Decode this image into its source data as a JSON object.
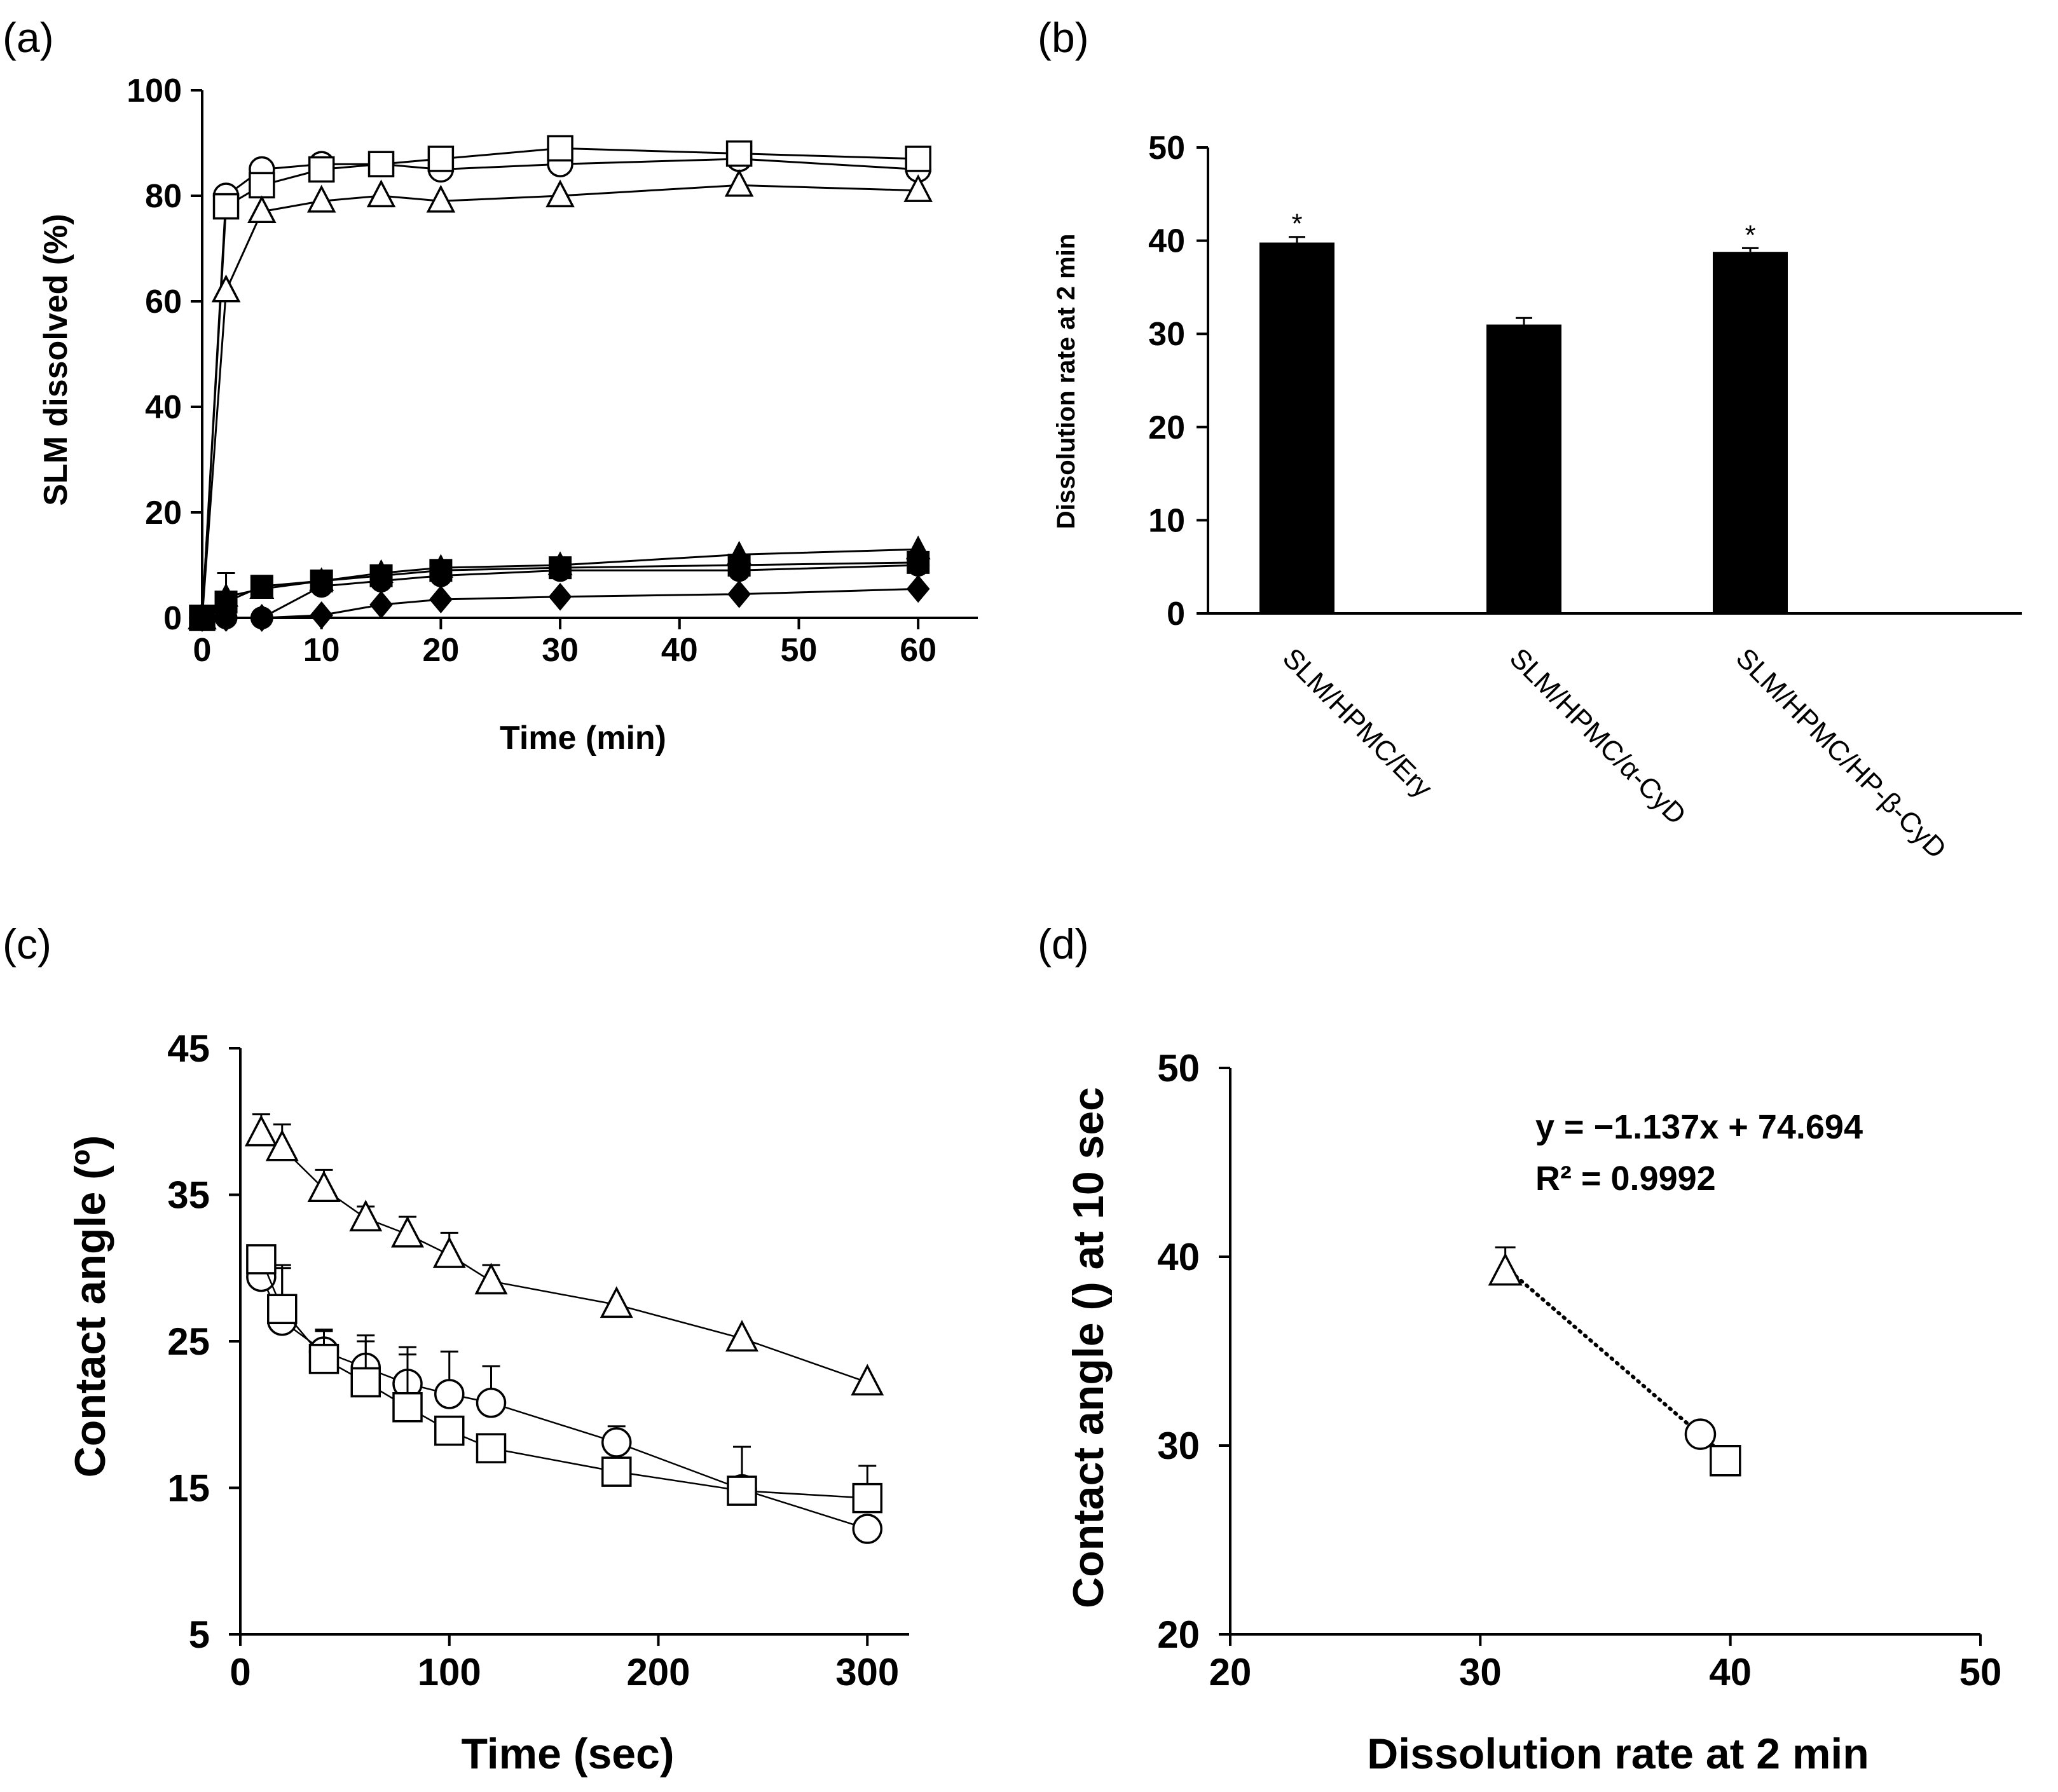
{
  "figure": {
    "panel_labels": [
      "(a)",
      "(b)",
      "(c)",
      "(d)"
    ]
  },
  "chart_data": [
    {
      "panel": "(a)",
      "type": "line",
      "title": "",
      "xlabel": "Time (min)",
      "ylabel": "SLM dissolved (%)",
      "xlim": [
        0,
        65
      ],
      "ylim": [
        0,
        100
      ],
      "xticks": [
        0,
        10,
        20,
        30,
        40,
        50,
        60
      ],
      "yticks": [
        0,
        20,
        40,
        60,
        80,
        100
      ],
      "grid": false,
      "legend": "none",
      "series": [
        {
          "name": "open circle",
          "marker": "circle",
          "filled": false,
          "x": [
            0,
            2,
            5,
            10,
            15,
            20,
            30,
            45,
            60
          ],
          "y": [
            0,
            80,
            85,
            86,
            86,
            85,
            86,
            87,
            85
          ]
        },
        {
          "name": "open square",
          "marker": "square",
          "filled": false,
          "x": [
            0,
            2,
            5,
            10,
            15,
            20,
            30,
            45,
            60
          ],
          "y": [
            0,
            78,
            82,
            85,
            86,
            87,
            89,
            88,
            87
          ]
        },
        {
          "name": "open triangle",
          "marker": "triangle",
          "filled": false,
          "x": [
            0,
            2,
            5,
            10,
            15,
            20,
            30,
            45,
            60
          ],
          "y": [
            0,
            62,
            77,
            79,
            80,
            79,
            80,
            82,
            81
          ]
        },
        {
          "name": "filled circle",
          "marker": "circle",
          "filled": true,
          "x": [
            0,
            2,
            5,
            10,
            15,
            20,
            30,
            45,
            60
          ],
          "y": [
            0,
            0,
            0,
            6,
            7,
            8,
            9,
            9,
            10
          ]
        },
        {
          "name": "filled square",
          "marker": "square",
          "filled": true,
          "x": [
            0,
            2,
            5,
            10,
            15,
            20,
            30,
            45,
            60
          ],
          "y": [
            0,
            3,
            6,
            7,
            8,
            9,
            9.5,
            10,
            10.5
          ]
        },
        {
          "name": "filled triangle",
          "marker": "triangle",
          "filled": true,
          "x": [
            0,
            2,
            5,
            10,
            15,
            20,
            30,
            45,
            60
          ],
          "y": [
            0,
            4,
            5.5,
            7,
            8.5,
            9.5,
            10,
            12,
            13
          ]
        },
        {
          "name": "filled diamond",
          "marker": "diamond",
          "filled": true,
          "x": [
            0,
            2,
            5,
            10,
            15,
            20,
            30,
            45,
            60
          ],
          "y": [
            0,
            0,
            0,
            0.5,
            2.5,
            3.5,
            4,
            4.5,
            5.5
          ]
        }
      ],
      "error_bars": [
        {
          "x": 2,
          "y": 3,
          "err": 5.5
        }
      ]
    },
    {
      "panel": "(b)",
      "type": "bar",
      "title": "",
      "xlabel": "",
      "ylabel": "Dissolution rate at 2 min",
      "ylim": [
        0,
        50
      ],
      "yticks": [
        0,
        10,
        20,
        30,
        40,
        50
      ],
      "grid": false,
      "legend": "none",
      "categories": [
        "SLM/HPMC/Ery",
        "SLM/HPMC/α-CyD",
        "SLM/HPMC/HP-β-CyD"
      ],
      "values": [
        39.8,
        31.0,
        38.8
      ],
      "errors": [
        0.6,
        0.7,
        0.4
      ],
      "annotations": [
        "*",
        "",
        "*"
      ]
    },
    {
      "panel": "(c)",
      "type": "line",
      "title": "",
      "xlabel": "Time (sec)",
      "ylabel": "Contact angle (º)",
      "xlim": [
        0,
        320
      ],
      "ylim": [
        5,
        45
      ],
      "xticks": [
        0,
        100,
        200,
        300
      ],
      "yticks": [
        5,
        15,
        25,
        35,
        45
      ],
      "grid": false,
      "legend": "none",
      "series": [
        {
          "name": "open triangle",
          "marker": "triangle",
          "filled": false,
          "x": [
            10,
            20,
            40,
            60,
            80,
            100,
            120,
            180,
            240,
            300
          ],
          "y": [
            39.2,
            38.2,
            35.4,
            33.4,
            32.3,
            30.9,
            29.1,
            27.5,
            25.2,
            22.2
          ],
          "err": [
            1.3,
            1.6,
            1.3,
            0.8,
            1.2,
            1.5,
            1.1,
            0,
            0,
            0
          ]
        },
        {
          "name": "open circle",
          "marker": "circle",
          "filled": false,
          "x": [
            10,
            20,
            40,
            60,
            80,
            100,
            120,
            180,
            240,
            300
          ],
          "y": [
            29.4,
            26.4,
            24.3,
            23.2,
            22.1,
            21.4,
            20.8,
            18.1,
            14.9,
            12.2
          ],
          "err": [
            0,
            3.8,
            1.5,
            2.2,
            2.5,
            2.9,
            2.5,
            1.1,
            0,
            0
          ]
        },
        {
          "name": "open square",
          "marker": "square",
          "filled": false,
          "x": [
            10,
            20,
            40,
            60,
            80,
            100,
            120,
            180,
            240,
            300
          ],
          "y": [
            30.6,
            27.2,
            23.8,
            22.2,
            20.5,
            18.9,
            17.7,
            16.1,
            14.8,
            14.3
          ],
          "err": [
            0,
            2.8,
            1.9,
            2.8,
            3.6,
            0,
            0,
            0,
            3.0,
            2.2
          ]
        }
      ]
    },
    {
      "panel": "(d)",
      "type": "scatter",
      "title": "",
      "xlabel": "Dissolution rate at 2 min",
      "ylabel": "Contact angle () at 10 sec",
      "xlim": [
        20,
        50
      ],
      "ylim": [
        20,
        50
      ],
      "xticks": [
        20,
        30,
        40,
        50
      ],
      "yticks": [
        20,
        30,
        40,
        50
      ],
      "grid": false,
      "legend": "none",
      "points": [
        {
          "marker": "triangle",
          "x": 31.0,
          "y": 39.2,
          "err": 1.3
        },
        {
          "marker": "circle",
          "x": 38.8,
          "y": 30.6,
          "err": 0
        },
        {
          "marker": "square",
          "x": 39.8,
          "y": 29.2,
          "err": 0
        }
      ],
      "trendline": {
        "slope": -1.137,
        "intercept": 74.694,
        "x_range": [
          31.0,
          39.8
        ]
      },
      "equation": "y = −1.137x + 74.694",
      "r_squared": "R² = 0.9992"
    }
  ]
}
